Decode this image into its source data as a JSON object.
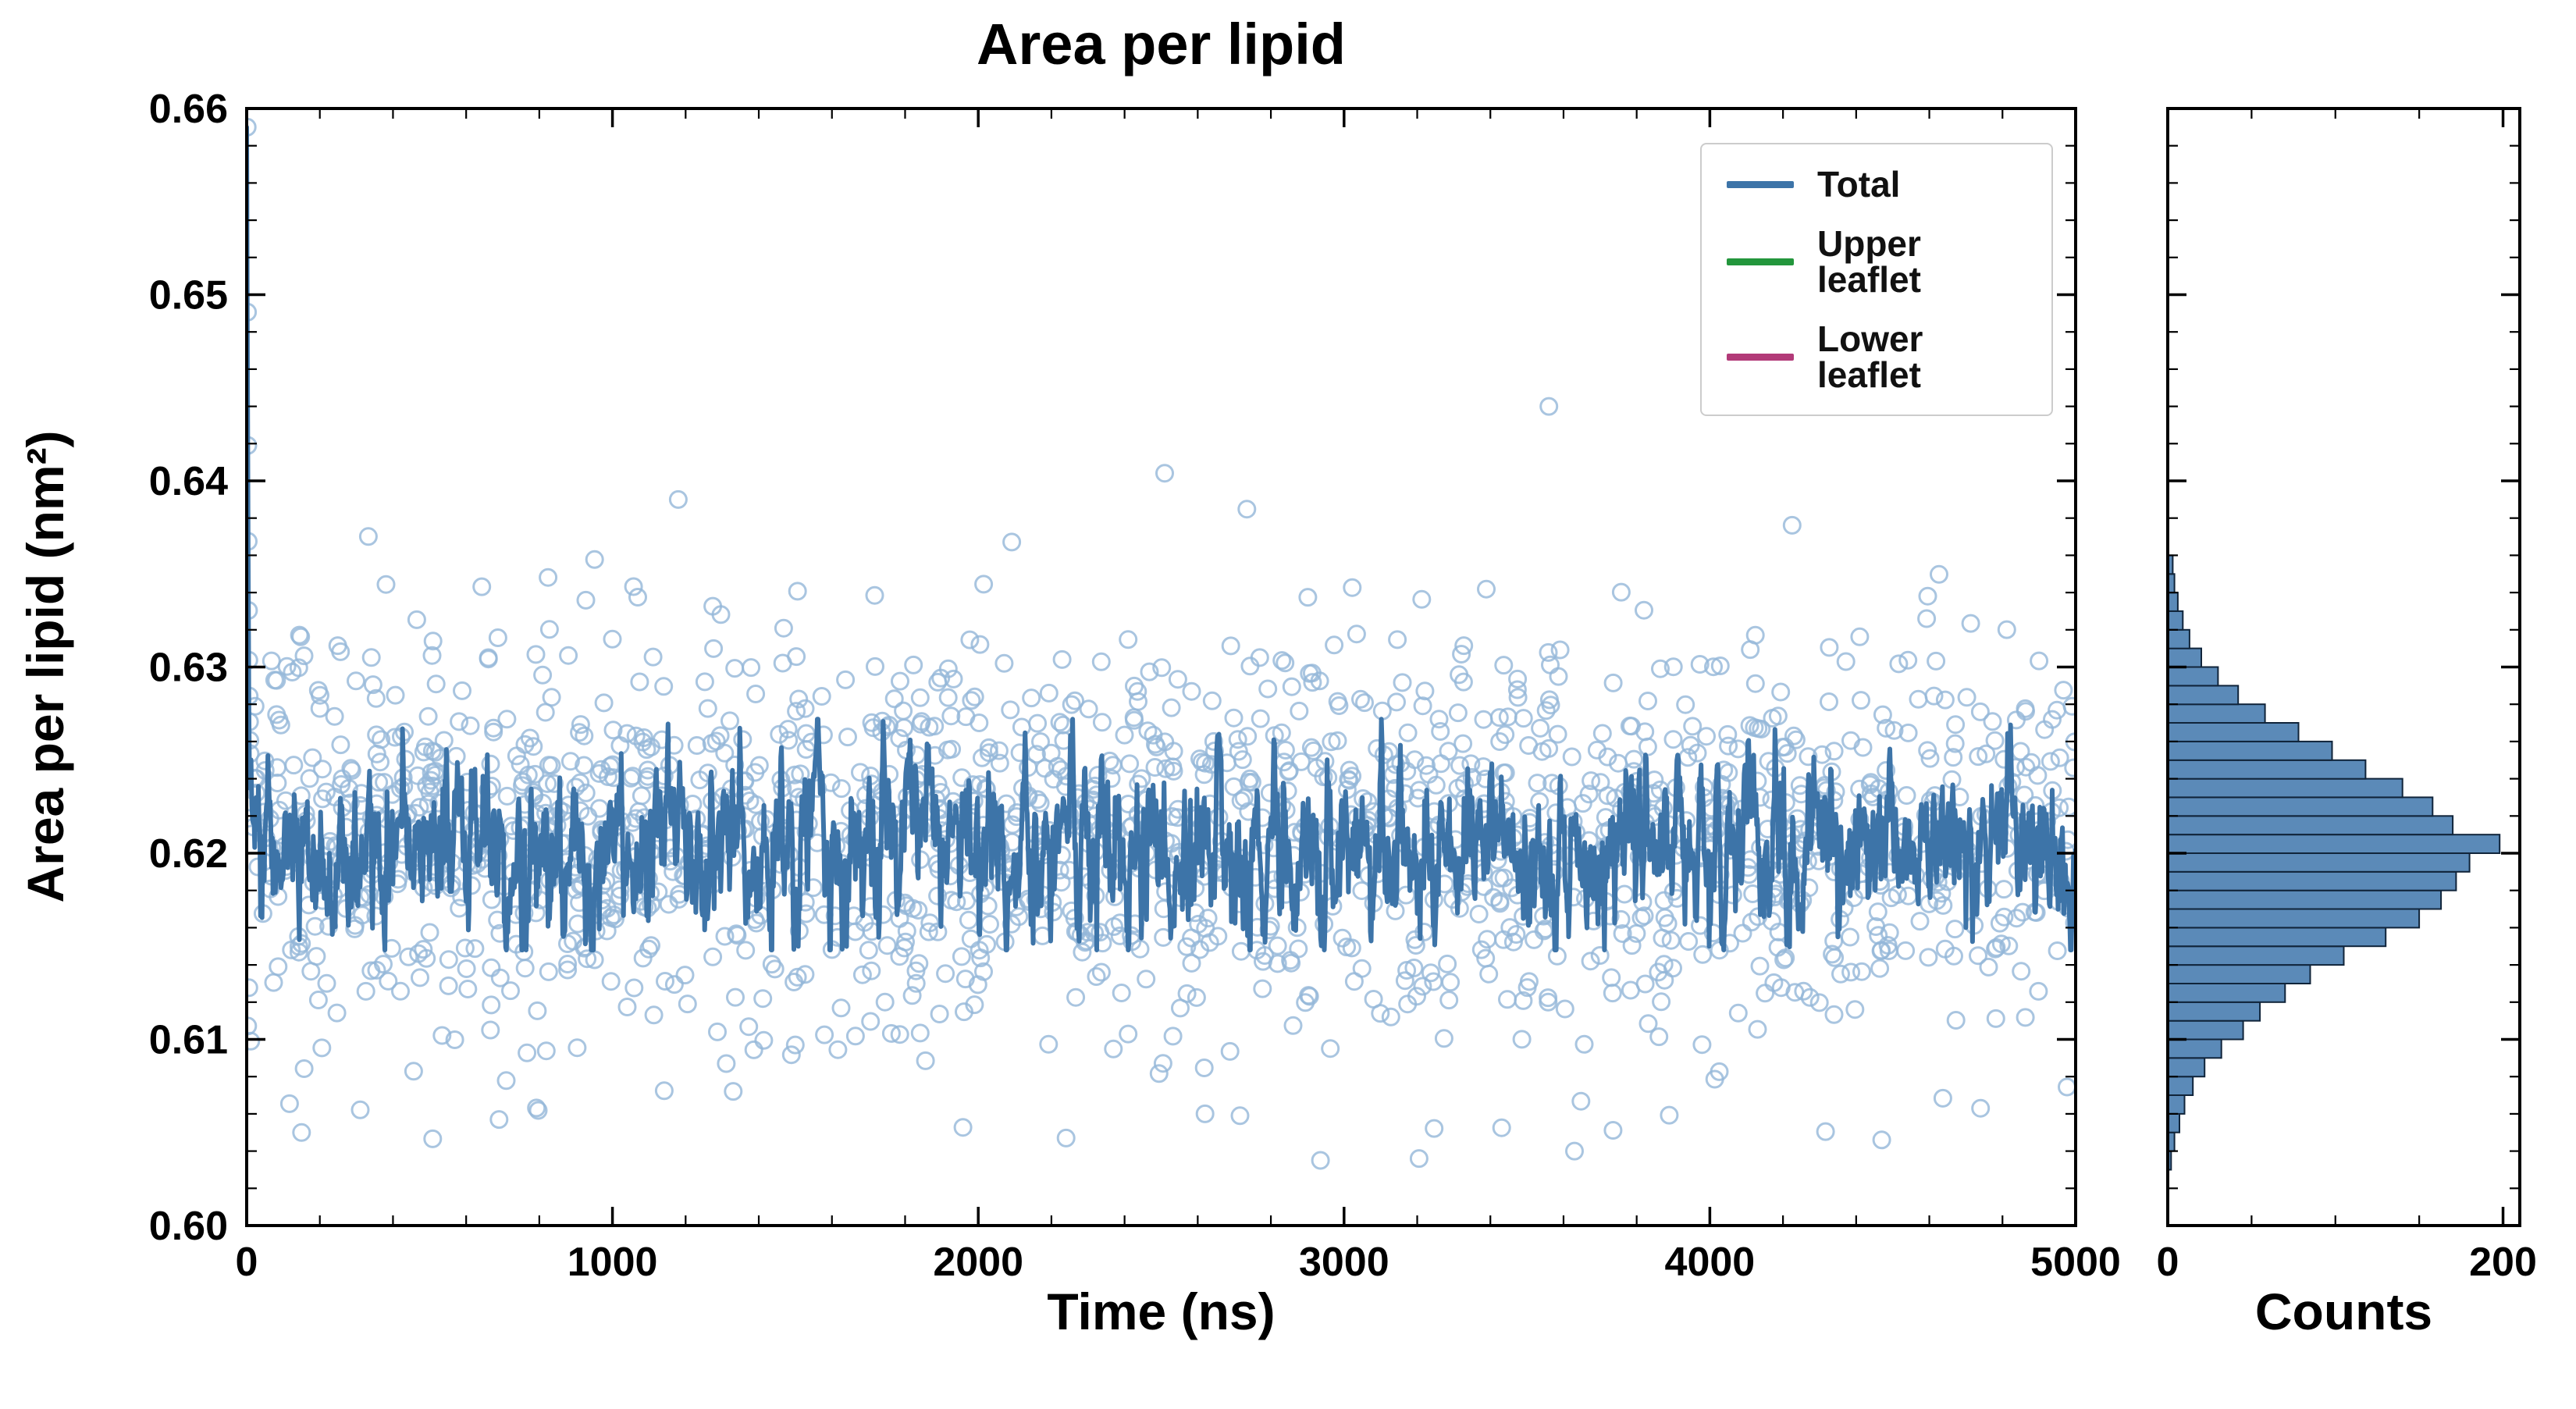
{
  "chart_data": [
    {
      "type": "scatter+line",
      "title": "Area per lipid",
      "xlabel": "Time (ns)",
      "ylabel": "Area per lipid (nm²)",
      "xlim": [
        0,
        5000
      ],
      "ylim": [
        0.6,
        0.66
      ],
      "xticks": [
        0,
        1000,
        2000,
        3000,
        4000,
        5000
      ],
      "xtick_labels": [
        "0",
        "1000",
        "2000",
        "3000",
        "4000",
        "5000"
      ],
      "yticks": [
        0.6,
        0.61,
        0.62,
        0.63,
        0.64,
        0.65,
        0.66
      ],
      "ytick_labels": [
        "0.60",
        "0.61",
        "0.62",
        "0.63",
        "0.64",
        "0.65",
        "0.66"
      ],
      "x_minor_step": 200,
      "y_minor_step": 0.002,
      "grid": false,
      "legend_position": "upper right",
      "legend": [
        {
          "label": "Total",
          "color": "#3d74a8"
        },
        {
          "label": "Upper leaflet",
          "color": "#23963c"
        },
        {
          "label": "Lower leaflet",
          "color": "#b23a78"
        }
      ],
      "scatter": {
        "n_points": 1700,
        "mean": 0.621,
        "std": 0.0055,
        "y_min": 0.6035,
        "y_max": 0.6455,
        "seed": 1337,
        "color": "#93b7d8",
        "marker": "open-circle"
      },
      "transient": {
        "x_start": 0,
        "y_start": 0.659,
        "y_end": 0.6235,
        "n": 10
      },
      "outliers": [
        [
          3560,
          0.644
        ],
        [
          1180,
          0.639
        ],
        [
          2240,
          0.6047
        ],
        [
          3205,
          0.6036
        ],
        [
          3630,
          0.604
        ],
        [
          4470,
          0.6046
        ],
        [
          690,
          0.6057
        ],
        [
          150,
          0.605
        ],
        [
          2620,
          0.606
        ],
        [
          4740,
          0.6063
        ]
      ],
      "line": {
        "label": "Total",
        "mean": 0.6203,
        "std": 0.0016,
        "phi": 0.72,
        "step_ns": 2,
        "clamp": [
          0.6148,
          0.6272
        ],
        "seed": 777,
        "color": "#3d74a8",
        "width": 6
      }
    },
    {
      "type": "histogram",
      "orientation": "horizontal",
      "xlabel": "Counts",
      "xlim": [
        0,
        210
      ],
      "xticks": [
        0,
        200
      ],
      "xtick_labels": [
        "0",
        "200"
      ],
      "x_minor": [
        50,
        100,
        150
      ],
      "bin_start": 0.603,
      "bin_width": 0.001,
      "counts": [
        2,
        4,
        7,
        10,
        15,
        22,
        32,
        45,
        55,
        70,
        85,
        105,
        130,
        150,
        163,
        172,
        180,
        198,
        170,
        158,
        140,
        118,
        98,
        78,
        58,
        42,
        30,
        20,
        13,
        9,
        6,
        4,
        3
      ],
      "fill": "#5b8ab8",
      "edge": "#10243a"
    }
  ]
}
